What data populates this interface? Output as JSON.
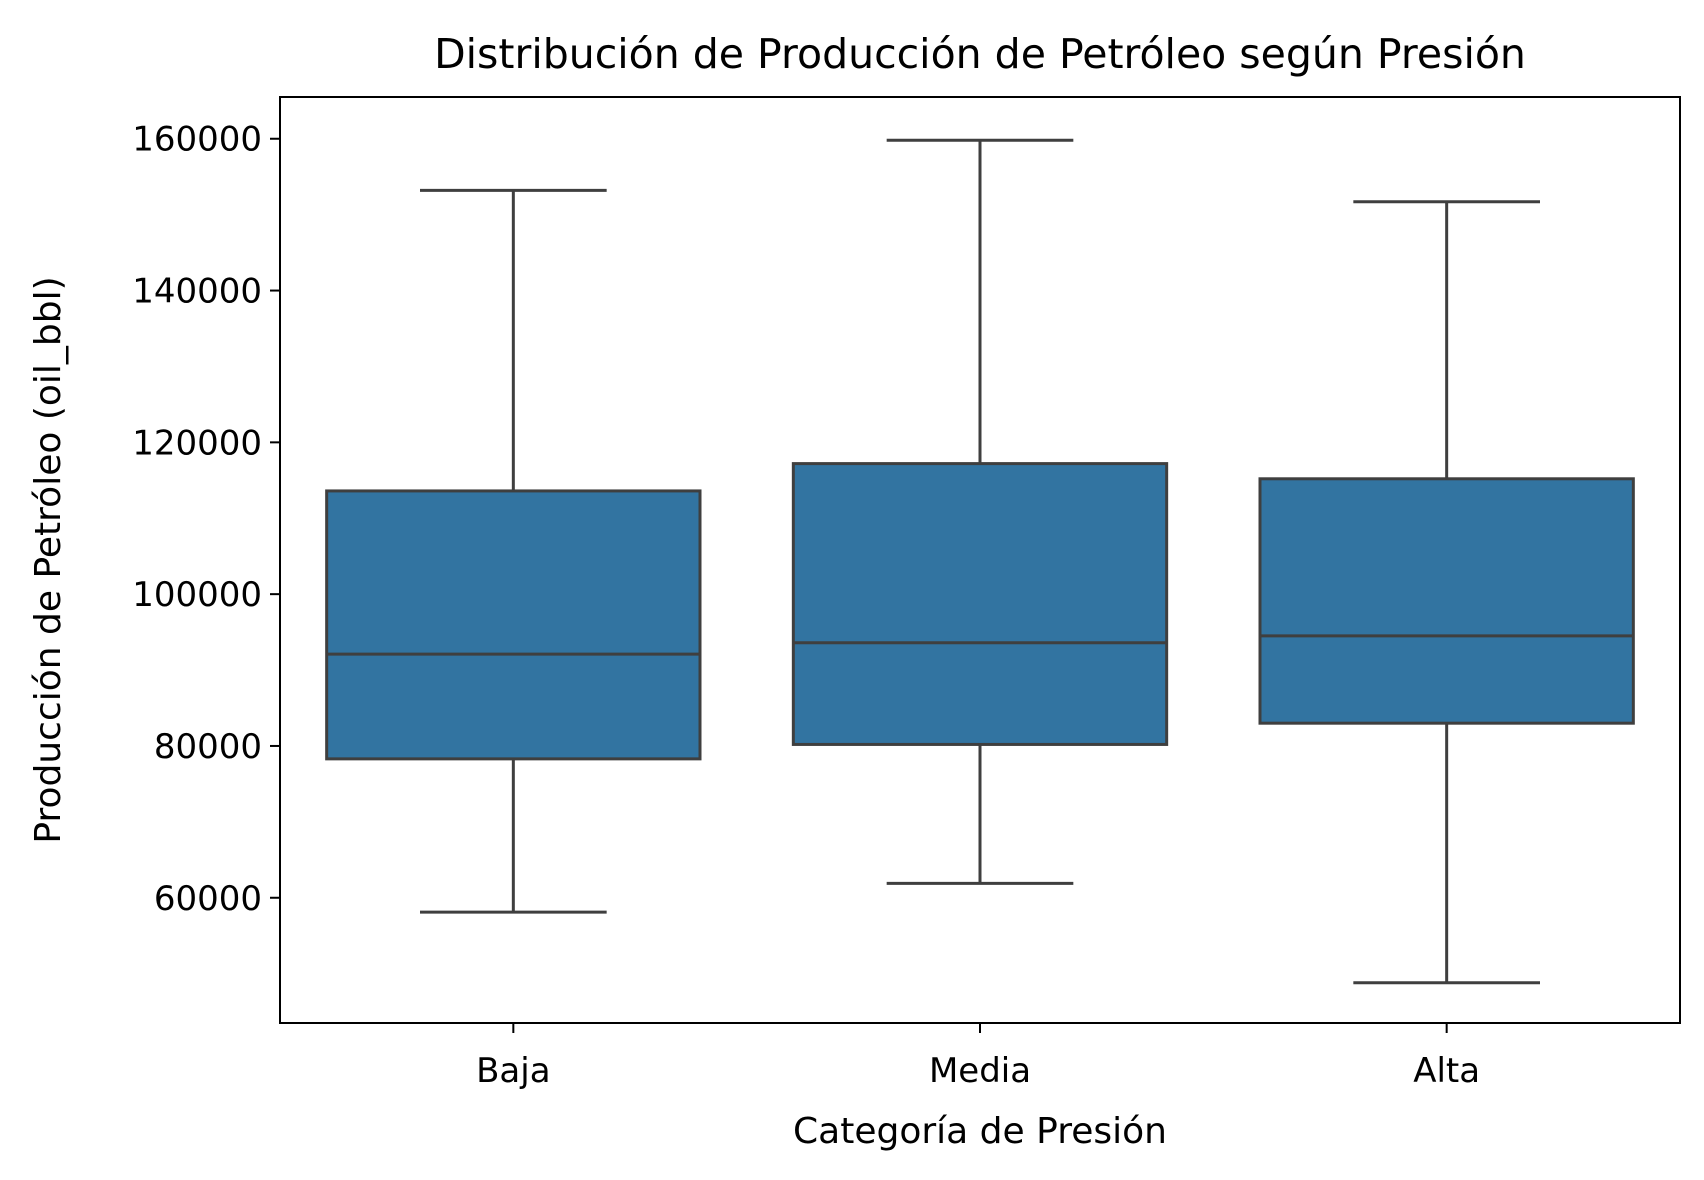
{
  "chart_data": {
    "type": "box",
    "title": "Distribución de Producción de Petróleo según Presión",
    "xlabel": "Categoría de Presión",
    "ylabel": "Producción de Petróleo (oil_bbl)",
    "ylim": [
      43500,
      165500
    ],
    "yticks": [
      60000,
      80000,
      100000,
      120000,
      140000,
      160000
    ],
    "categories": [
      "Baja",
      "Media",
      "Alta"
    ],
    "box_color": "#3274a1",
    "line_color": "#3f3f3f",
    "boxes": [
      {
        "category": "Baja",
        "whislo": 58100,
        "q1": 78300,
        "median": 92100,
        "q3": 113600,
        "whishi": 153200
      },
      {
        "category": "Media",
        "whislo": 61900,
        "q1": 80200,
        "median": 93600,
        "q3": 117200,
        "whishi": 159800
      },
      {
        "category": "Alta",
        "whislo": 48800,
        "q1": 83000,
        "median": 94500,
        "q3": 115200,
        "whishi": 151700
      }
    ]
  }
}
